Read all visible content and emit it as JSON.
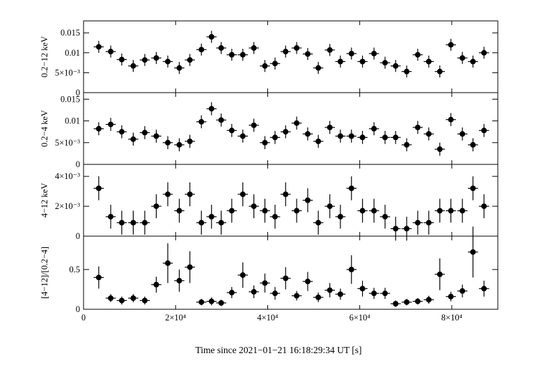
{
  "chart_data": {
    "type": "scatter",
    "xlabel": "Time since 2021−01−21 16:18:29:34 UT [s]",
    "xlim": [
      0,
      90000
    ],
    "x_ticks": [
      {
        "value": 0,
        "label": "0"
      },
      {
        "value": 20000,
        "label": "2×10⁴"
      },
      {
        "value": 40000,
        "label": "4×10⁴"
      },
      {
        "value": 60000,
        "label": "6×10⁴"
      },
      {
        "value": 80000,
        "label": "8×10⁴"
      }
    ],
    "x": [
      3300,
      5900,
      8300,
      10800,
      13300,
      15800,
      18300,
      20800,
      23100,
      25600,
      27800,
      29900,
      32200,
      34600,
      37000,
      39400,
      41600,
      43900,
      46300,
      48700,
      51000,
      53500,
      55800,
      58200,
      60600,
      63100,
      65500,
      67800,
      70200,
      72600,
      75000,
      77400,
      79800,
      82300,
      84600,
      87000
    ],
    "x_err": 1100,
    "panels": [
      {
        "ylabel": "0.2−12 keV",
        "ylim": [
          0,
          0.018
        ],
        "y_ticks": [
          {
            "value": 0,
            "label": "0"
          },
          {
            "value": 0.005,
            "label": "5×10⁻³"
          },
          {
            "value": 0.01,
            "label": "0.01"
          },
          {
            "value": 0.015,
            "label": "0.015"
          }
        ],
        "y": [
          0.0115,
          0.0103,
          0.0083,
          0.0067,
          0.0082,
          0.0087,
          0.0078,
          0.0062,
          0.0082,
          0.0108,
          0.014,
          0.0112,
          0.0095,
          0.0095,
          0.0112,
          0.0067,
          0.0073,
          0.0103,
          0.0112,
          0.0097,
          0.0062,
          0.0107,
          0.0078,
          0.0098,
          0.0078,
          0.0098,
          0.0075,
          0.0067,
          0.0053,
          0.0095,
          0.0078,
          0.0053,
          0.012,
          0.0087,
          0.0078,
          0.01
        ],
        "y_err": 0.0015
      },
      {
        "ylabel": "0.2−4 keV",
        "ylim": [
          0,
          0.0165
        ],
        "y_ticks": [
          {
            "value": 0,
            "label": "0"
          },
          {
            "value": 0.005,
            "label": "5×10⁻³"
          },
          {
            "value": 0.01,
            "label": "0.01"
          },
          {
            "value": 0.015,
            "label": "0.015"
          }
        ],
        "y": [
          0.0082,
          0.0092,
          0.0075,
          0.0058,
          0.0073,
          0.0065,
          0.005,
          0.0045,
          0.0053,
          0.0098,
          0.0128,
          0.0102,
          0.0078,
          0.0065,
          0.009,
          0.005,
          0.0062,
          0.0075,
          0.0095,
          0.007,
          0.0053,
          0.0085,
          0.0065,
          0.0065,
          0.0062,
          0.0082,
          0.0062,
          0.0062,
          0.0045,
          0.0085,
          0.007,
          0.0035,
          0.0103,
          0.007,
          0.0045,
          0.0078
        ],
        "y_err": 0.0015
      },
      {
        "ylabel": "4−12 keV",
        "ylim": [
          0,
          0.0048
        ],
        "y_ticks": [
          {
            "value": 0,
            "label": "0"
          },
          {
            "value": 0.002,
            "label": "2×10⁻³"
          },
          {
            "value": 0.004,
            "label": "4×10⁻³"
          }
        ],
        "y": [
          0.0032,
          0.0013,
          0.0009,
          0.0009,
          0.0009,
          0.002,
          0.0028,
          0.0017,
          0.0028,
          0.0009,
          0.0013,
          0.0009,
          0.0017,
          0.0028,
          0.002,
          0.0017,
          0.0013,
          0.0028,
          0.0017,
          0.0024,
          0.0009,
          0.002,
          0.0013,
          0.0032,
          0.0017,
          0.0017,
          0.0013,
          0.0005,
          0.0005,
          0.0009,
          0.0009,
          0.0017,
          0.0017,
          0.0017,
          0.0032,
          0.002
        ],
        "y_err": 0.0008
      },
      {
        "ylabel": "[4−12]/[0.2−4]",
        "ylim": [
          0,
          0.92
        ],
        "y_ticks": [
          {
            "value": 0,
            "label": "0"
          },
          {
            "value": 0.5,
            "label": "0.5"
          }
        ],
        "y": [
          0.4,
          0.14,
          0.11,
          0.14,
          0.11,
          0.31,
          0.58,
          0.36,
          0.53,
          0.09,
          0.1,
          0.08,
          0.21,
          0.43,
          0.22,
          0.33,
          0.2,
          0.39,
          0.17,
          0.35,
          0.15,
          0.24,
          0.19,
          0.5,
          0.26,
          0.2,
          0.2,
          0.07,
          0.09,
          0.1,
          0.12,
          0.44,
          0.16,
          0.23,
          0.72,
          0.26
        ],
        "y_err": [
          0.14,
          0.05,
          0.05,
          0.05,
          0.05,
          0.1,
          0.25,
          0.14,
          0.2,
          0.04,
          0.05,
          0.04,
          0.07,
          0.16,
          0.08,
          0.12,
          0.08,
          0.14,
          0.06,
          0.12,
          0.06,
          0.09,
          0.07,
          0.18,
          0.1,
          0.07,
          0.07,
          0.04,
          0.04,
          0.04,
          0.05,
          0.2,
          0.06,
          0.08,
          0.32,
          0.1
        ]
      }
    ],
    "legend": "none",
    "grid": false
  }
}
